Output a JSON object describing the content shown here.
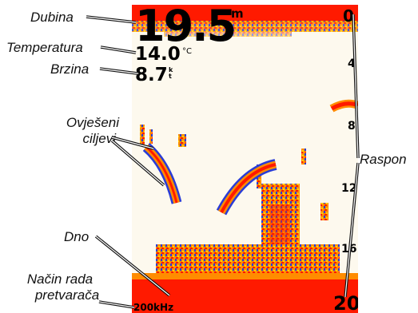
{
  "labels": {
    "depth": "Dubina",
    "temperature": "Temperatura",
    "speed": "Brzina",
    "suspended_targets_line1": "Ovješeni",
    "suspended_targets_line2": "ciljevi",
    "range": "Raspon",
    "bottom": "Dno",
    "transducer_mode_line1": "Način rada",
    "transducer_mode_line2": "pretvarača"
  },
  "display": {
    "depth_value": "19.5",
    "depth_unit": "m",
    "temperature_value": "14.0",
    "temperature_unit": "°C",
    "speed_value": "8.7",
    "speed_unit": "kt",
    "scale_ticks": [
      "0",
      "4",
      "8",
      "12",
      "16",
      "20"
    ],
    "frequency": "200kHz"
  },
  "colors": {
    "sonar_strong": "#ff1a00",
    "sonar_medium": "#ff8c00",
    "sonar_weak": "#ffd400",
    "sonar_faint": "#2a3cd6",
    "screen_background": "#fdf9ee"
  }
}
